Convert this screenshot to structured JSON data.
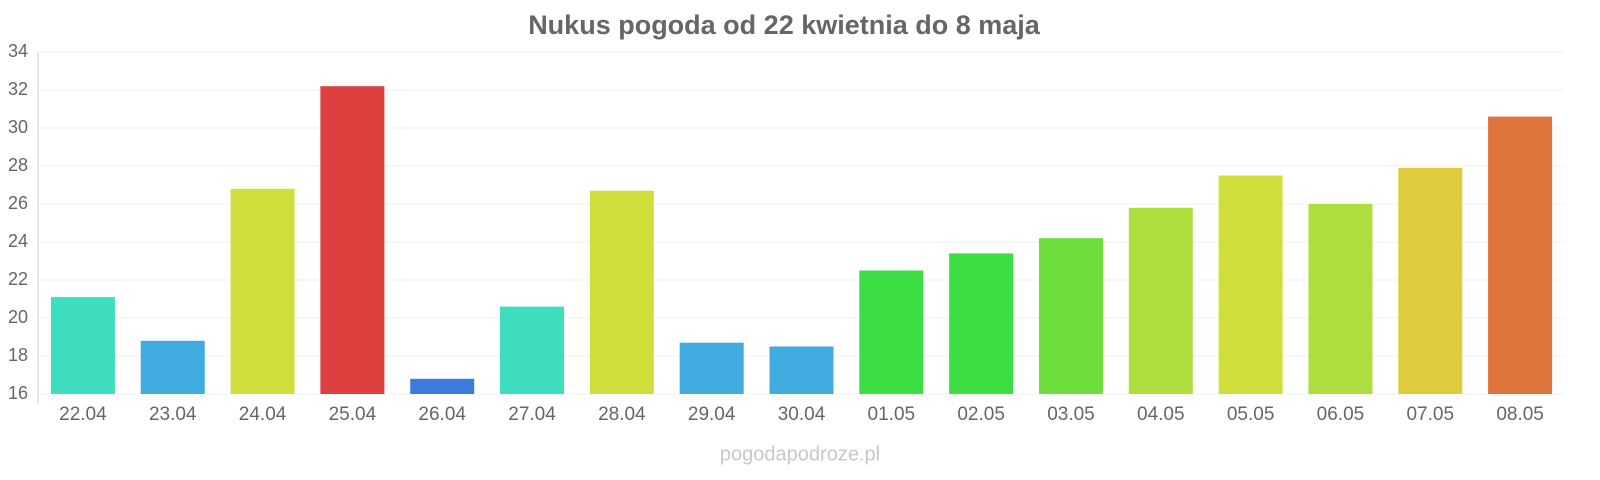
{
  "chart_data": {
    "type": "bar",
    "title": "Nukus pogoda od 22 kwietnia do 8 maja",
    "categories": [
      "22.04",
      "23.04",
      "24.04",
      "25.04",
      "26.04",
      "27.04",
      "28.04",
      "29.04",
      "30.04",
      "01.05",
      "02.05",
      "03.05",
      "04.05",
      "05.05",
      "06.05",
      "07.05",
      "08.05"
    ],
    "values": [
      21.1,
      18.8,
      26.8,
      32.2,
      16.8,
      20.6,
      26.7,
      18.7,
      18.5,
      22.5,
      23.4,
      24.2,
      25.8,
      27.5,
      26.0,
      27.9,
      30.6
    ],
    "colors": [
      "#33dbb9",
      "#35a6dc",
      "#cddc32",
      "#dc3535",
      "#3374dc",
      "#33dbb9",
      "#cddc32",
      "#35a6dc",
      "#35a6dc",
      "#33dc3a",
      "#33dc3a",
      "#66dc33",
      "#a9dc33",
      "#cddc32",
      "#a9dc33",
      "#dcc932",
      "#dc6b32"
    ],
    "ylim": [
      16,
      34
    ],
    "yticks": [
      16,
      18,
      20,
      22,
      24,
      26,
      28,
      30,
      32,
      34
    ],
    "grid": true,
    "source": "pogodapodroze.pl"
  }
}
